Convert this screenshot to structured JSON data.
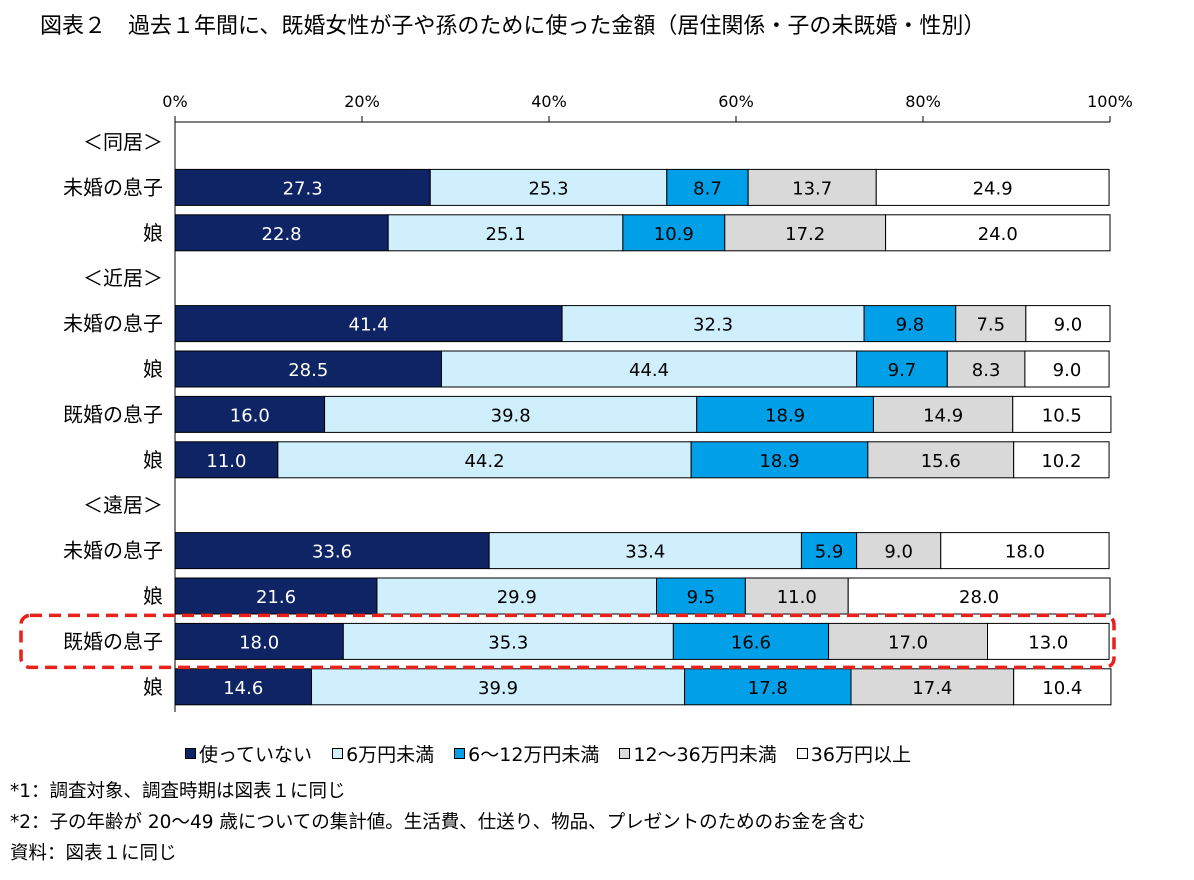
{
  "chart_data": {
    "type": "bar",
    "orientation": "horizontal-stacked-100",
    "title": "図表２　過去１年間に、既婚女性が子や孫のために使った金額（居住関係・子の未既婚・性別）",
    "x_ticks": [
      "0%",
      "20%",
      "40%",
      "60%",
      "80%",
      "100%"
    ],
    "xlim": [
      0,
      100
    ],
    "legend_position": "bottom",
    "series": [
      {
        "name": "使っていない",
        "color": "#0e2465",
        "text_color": "#ffffff"
      },
      {
        "name": "6万円未満",
        "color": "#cfeffc",
        "text_color": "#000000"
      },
      {
        "name": "6～12万円未満",
        "color": "#00a0e9",
        "text_color": "#000000"
      },
      {
        "name": "12～36万円未満",
        "color": "#d9d9d9",
        "text_color": "#000000"
      },
      {
        "name": "36万円以上",
        "color": "#ffffff",
        "text_color": "#000000"
      }
    ],
    "rows": [
      {
        "kind": "group",
        "label": "＜同居＞"
      },
      {
        "kind": "bar",
        "label": "未婚の息子",
        "values": [
          "27.3",
          "25.3",
          "8.7",
          "13.7",
          "24.9"
        ]
      },
      {
        "kind": "bar",
        "label": "娘",
        "values": [
          "22.8",
          "25.1",
          "10.9",
          "17.2",
          "24.0"
        ]
      },
      {
        "kind": "group",
        "label": "＜近居＞"
      },
      {
        "kind": "bar",
        "label": "未婚の息子",
        "values": [
          "41.4",
          "32.3",
          "9.8",
          "7.5",
          "9.0"
        ]
      },
      {
        "kind": "bar",
        "label": "娘",
        "values": [
          "28.5",
          "44.4",
          "9.7",
          "8.3",
          "9.0"
        ]
      },
      {
        "kind": "bar",
        "label": "既婚の息子",
        "values": [
          "16.0",
          "39.8",
          "18.9",
          "14.9",
          "10.5"
        ]
      },
      {
        "kind": "bar",
        "label": "娘",
        "values": [
          "11.0",
          "44.2",
          "18.9",
          "15.6",
          "10.2"
        ]
      },
      {
        "kind": "group",
        "label": "＜遠居＞"
      },
      {
        "kind": "bar",
        "label": "未婚の息子",
        "values": [
          "33.6",
          "33.4",
          "5.9",
          "9.0",
          "18.0"
        ]
      },
      {
        "kind": "bar",
        "label": "娘",
        "values": [
          "21.6",
          "29.9",
          "9.5",
          "11.0",
          "28.0"
        ]
      },
      {
        "kind": "bar",
        "label": "既婚の息子",
        "values": [
          "18.0",
          "35.3",
          "16.6",
          "17.0",
          "13.0"
        ],
        "highlighted": true
      },
      {
        "kind": "bar",
        "label": "娘",
        "values": [
          "14.6",
          "39.9",
          "17.8",
          "17.4",
          "10.4"
        ]
      }
    ],
    "highlight_color": "#e8211a"
  },
  "notes": [
    "*1：調査対象、調査時期は図表１に同じ",
    "*2：子の年齢が 20～49 歳についての集計値。生活費、仕送り、物品、プレゼントのためのお金を含む",
    "資料：図表１に同じ"
  ]
}
